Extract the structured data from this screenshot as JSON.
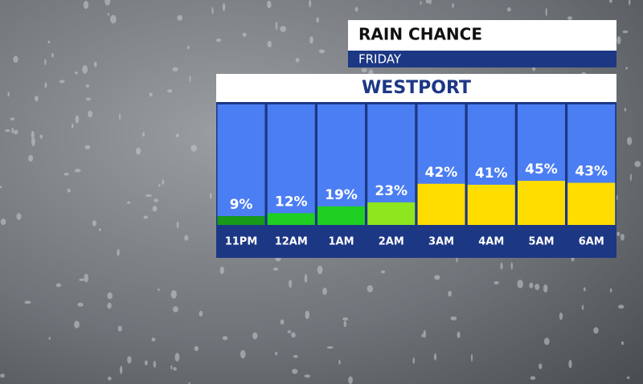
{
  "chart_data": {
    "type": "bar",
    "title": "RAIN CHANCE",
    "subtitle": "FRIDAY",
    "location": "WESTPORT",
    "categories": [
      "11PM",
      "12AM",
      "1AM",
      "2AM",
      "3AM",
      "4AM",
      "5AM",
      "6AM"
    ],
    "values": [
      9,
      12,
      19,
      23,
      42,
      41,
      45,
      43
    ],
    "value_labels": [
      "9%",
      "12%",
      "19%",
      "23%",
      "42%",
      "41%",
      "45%",
      "43%"
    ],
    "colors": [
      "#179a1a",
      "#1fcf22",
      "#1fcf22",
      "#8ee61e",
      "#ffdd00",
      "#ffdd00",
      "#ffdd00",
      "#ffdd00"
    ]
  }
}
